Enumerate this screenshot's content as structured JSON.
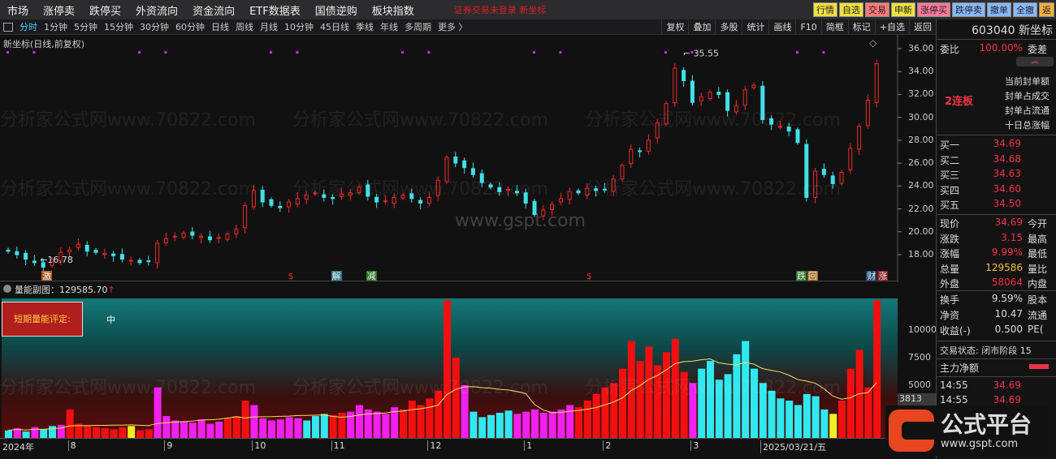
{
  "menu": [
    "市场",
    "涨停卖",
    "跌停买",
    "外资流向",
    "资金流向",
    "ETF数据表",
    "国债逆购",
    "板块指数"
  ],
  "login_status": "证券交易未登录  新坐标",
  "quick_buttons": [
    {
      "label": "行情",
      "color": "#f0e040"
    },
    {
      "label": "自选",
      "color": "#f0e040"
    },
    {
      "label": "交易",
      "color": "#ff7a7a"
    },
    {
      "label": "申新",
      "color": "#f0e040"
    },
    {
      "label": "涨停买",
      "color": "#ff7a9a"
    },
    {
      "label": "跌停卖",
      "color": "#8ab8ff"
    },
    {
      "label": "撤单",
      "color": "#8ab8ff"
    },
    {
      "label": "全撤",
      "color": "#8ab8ff"
    },
    {
      "label": "返",
      "color": "#f0b040"
    }
  ],
  "periods": [
    "分时",
    "1分钟",
    "5分钟",
    "15分钟",
    "30分钟",
    "60分钟",
    "日线",
    "周线",
    "月线",
    "10分钟",
    "45日线",
    "季线",
    "年线",
    "多周期",
    "更多 〉"
  ],
  "active_period": "分时",
  "tools": [
    "复权",
    "叠加",
    "多股",
    "统计",
    "画线",
    "F10",
    "简框",
    "标记",
    "+自选",
    "返回"
  ],
  "chart_title": "新坐标(日线,前复权)",
  "watermarks": [
    "分析家公式网www.70822.com",
    "www.gspt.com"
  ],
  "chart_data": {
    "type": "candlestick",
    "price_ticks": [
      "36.00",
      "34.00",
      "32.00",
      "30.00",
      "28.00",
      "26.00",
      "24.00",
      "22.00",
      "20.00",
      "18.00"
    ],
    "ylim": [
      17,
      36.5
    ],
    "high_label": "35.55",
    "low_label": "16.78",
    "closes": [
      18.3,
      18.0,
      17.6,
      17.3,
      16.9,
      17.6,
      18.2,
      18.4,
      18.9,
      18.3,
      18.2,
      18.1,
      17.9,
      17.6,
      17.5,
      17.3,
      17.4,
      19.0,
      19.4,
      19.6,
      19.9,
      19.7,
      19.6,
      19.3,
      19.5,
      19.8,
      20.2,
      22.3,
      23.6,
      22.6,
      22.3,
      22.1,
      22.6,
      22.9,
      23.2,
      23.4,
      23.0,
      22.9,
      23.3,
      23.4,
      23.9,
      23.1,
      22.6,
      22.7,
      23.0,
      23.2,
      22.9,
      22.5,
      23.0,
      24.5,
      26.5,
      26.0,
      25.6,
      25.0,
      24.3,
      23.9,
      23.5,
      23.7,
      23.4,
      22.5,
      21.5,
      21.9,
      22.4,
      22.9,
      23.5,
      23.4,
      23.8,
      23.6,
      23.7,
      24.6,
      25.8,
      27.2,
      27.0,
      28.0,
      29.5,
      31.2,
      34.3,
      33.2,
      31.3,
      31.8,
      32.2,
      32.0,
      30.6,
      31.0,
      32.4,
      32.8,
      29.8,
      29.4,
      29.2,
      28.8,
      27.8,
      23.0,
      25.3,
      25.0,
      24.2,
      25.2,
      27.3,
      29.2,
      31.5,
      34.69
    ],
    "markers": [
      {
        "label": "激",
        "color": "#b05a20",
        "at": 4
      },
      {
        "label": "$",
        "color": "#e03030",
        "at": 32
      },
      {
        "label": "解",
        "color": "#2a7a8a",
        "at": 37
      },
      {
        "label": "减",
        "color": "#2a7a2a",
        "at": 41
      },
      {
        "label": "$",
        "color": "#e03030",
        "at": 66
      },
      {
        "label": "跌",
        "color": "#2a7a2a",
        "at": 90
      },
      {
        "label": "回",
        "color": "#a06a20",
        "at": 91
      },
      {
        "label": "财",
        "color": "#1a4a7a",
        "at": 98
      },
      {
        "label": "涨",
        "color": "#8a1a1a",
        "at": 99
      }
    ],
    "volume_title": "量能副图：129585.70",
    "volume_ticks": [
      "10000",
      "7500",
      "5000"
    ],
    "volume_last": "3813",
    "volumes": [
      900,
      1100,
      800,
      1200,
      1000,
      1300,
      1400,
      2800,
      1500,
      1300,
      1200,
      1100,
      1000,
      1200,
      1300,
      900,
      1000,
      4800,
      2200,
      1800,
      1700,
      1600,
      1900,
      1500,
      1700,
      2000,
      2200,
      3600,
      3200,
      2000,
      1800,
      1900,
      2100,
      2000,
      1800,
      2200,
      2400,
      2300,
      2500,
      2600,
      3200,
      2800,
      2600,
      2400,
      3000,
      2800,
      3600,
      3200,
      3800,
      4500,
      12700,
      7500,
      5000,
      2600,
      2100,
      2300,
      2500,
      2700,
      2400,
      2600,
      2800,
      2500,
      2600,
      2800,
      3200,
      3000,
      3600,
      4200,
      4800,
      5200,
      6500,
      9000,
      7200,
      8500,
      6800,
      8000,
      9200,
      6200,
      5200,
      6500,
      7200,
      5500,
      6000,
      7800,
      9000,
      6500,
      5200,
      4500,
      3800,
      3600,
      3200,
      4200,
      4000,
      2800,
      2400,
      3600,
      6500,
      8200,
      4800,
      12700
    ],
    "volume_colors": "cmcmccmrrrrrrryrrmmmmmmmmrrrmmmmmmcccrrmmmmmmrrrrrrrmcccccmmmmmmmrrrrrrrrrrrrrmcccccccccccccccyrrrrr",
    "date_ticks": [
      {
        "label": "2024年",
        "at": 0
      },
      {
        "label": "8",
        "at": 7
      },
      {
        "label": "9",
        "at": 18
      },
      {
        "label": "10",
        "at": 28
      },
      {
        "label": "11",
        "at": 37
      },
      {
        "label": "12",
        "at": 48
      },
      {
        "label": "1",
        "at": 59
      },
      {
        "label": "2",
        "at": 68
      },
      {
        "label": "3",
        "at": 78
      },
      {
        "label": "2025/03/21/五",
        "at": 85
      }
    ]
  },
  "rating": {
    "label": "短期量能评定:",
    "value": "中"
  },
  "panel": {
    "code_name": "603040 新坐标",
    "weibi_label": "委比",
    "weibi": "100.00%",
    "weicha": "委差",
    "streak": "2连板",
    "seal_items": [
      "当前封单额",
      "封单占成交",
      "封单占流通",
      "十日总涨幅"
    ],
    "bids": [
      {
        "l": "买一",
        "v": "34.69"
      },
      {
        "l": "买二",
        "v": "34.68"
      },
      {
        "l": "买三",
        "v": "34.63"
      },
      {
        "l": "买四",
        "v": "34.60"
      },
      {
        "l": "买五",
        "v": "34.50"
      }
    ],
    "stats1": [
      {
        "l": "现价",
        "v": "34.69",
        "r": "今开",
        "c": "red"
      },
      {
        "l": "涨跌",
        "v": "3.15",
        "r": "最高",
        "c": "red"
      },
      {
        "l": "涨幅",
        "v": "9.99%",
        "r": "最低",
        "c": "red"
      },
      {
        "l": "总量",
        "v": "129586",
        "r": "量比",
        "c": "yel"
      },
      {
        "l": "外盘",
        "v": "58064",
        "r": "内盘",
        "c": "red"
      }
    ],
    "stats2": [
      {
        "l": "换手",
        "v": "9.59%",
        "r": "股本",
        "c": "wht"
      },
      {
        "l": "净资",
        "v": "10.47",
        "r": "流通",
        "c": "wht"
      },
      {
        "l": "收益(-)",
        "v": "0.500",
        "r": "PE(",
        "c": "wht"
      }
    ],
    "trade_status": "交易状态: 闭市阶段 15",
    "main_net": "主力净额",
    "ticks": [
      {
        "t": "14:55",
        "p": "34.69"
      },
      {
        "t": "14:55",
        "p": "34.69"
      }
    ]
  },
  "logo": {
    "text": "公式平台",
    "url": "www.gspt.com"
  }
}
